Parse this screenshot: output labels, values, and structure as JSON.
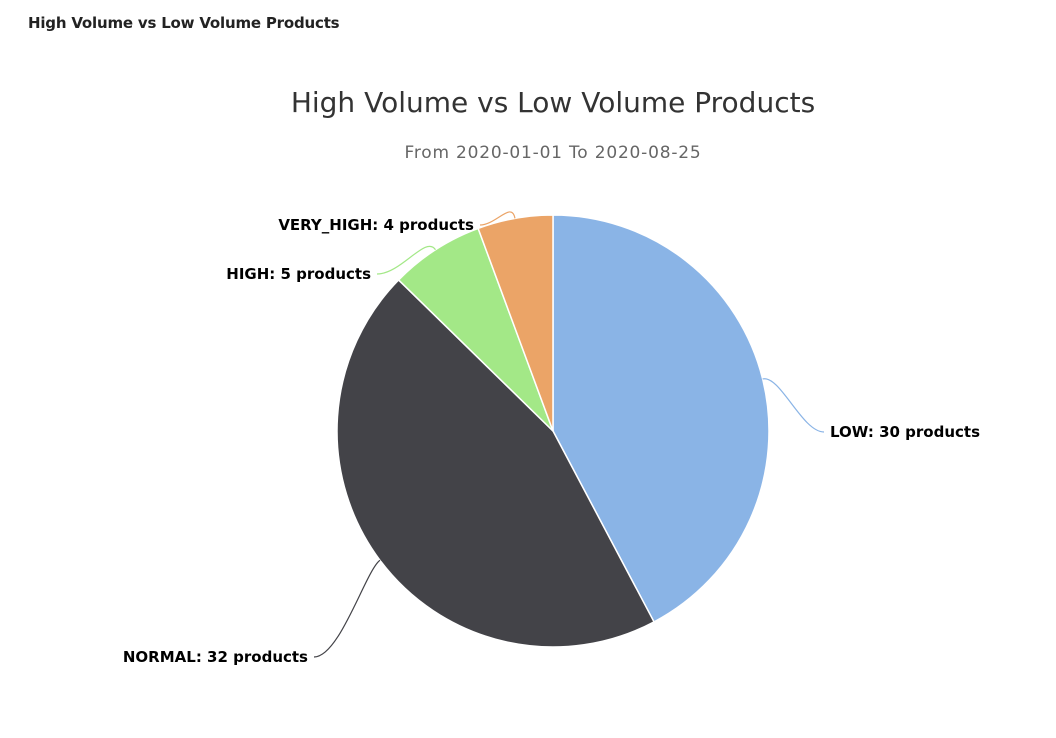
{
  "panel": {
    "title": "High Volume vs Low Volume Products"
  },
  "chart_data": {
    "type": "pie",
    "title": "High Volume vs Low Volume Products",
    "subtitle": "From 2020-01-01 To 2020-08-25",
    "unit": "products",
    "slices": [
      {
        "name": "LOW",
        "value": 30,
        "color": "#8ab4e6",
        "label": "LOW: 30 products"
      },
      {
        "name": "NORMAL",
        "value": 32,
        "color": "#434348",
        "label": "NORMAL: 32 products"
      },
      {
        "name": "HIGH",
        "value": 5,
        "color": "#a3e887",
        "label": "HIGH: 5 products"
      },
      {
        "name": "VERY_HIGH",
        "value": 4,
        "color": "#eba467",
        "label": "VERY_HIGH: 4 products"
      }
    ]
  }
}
